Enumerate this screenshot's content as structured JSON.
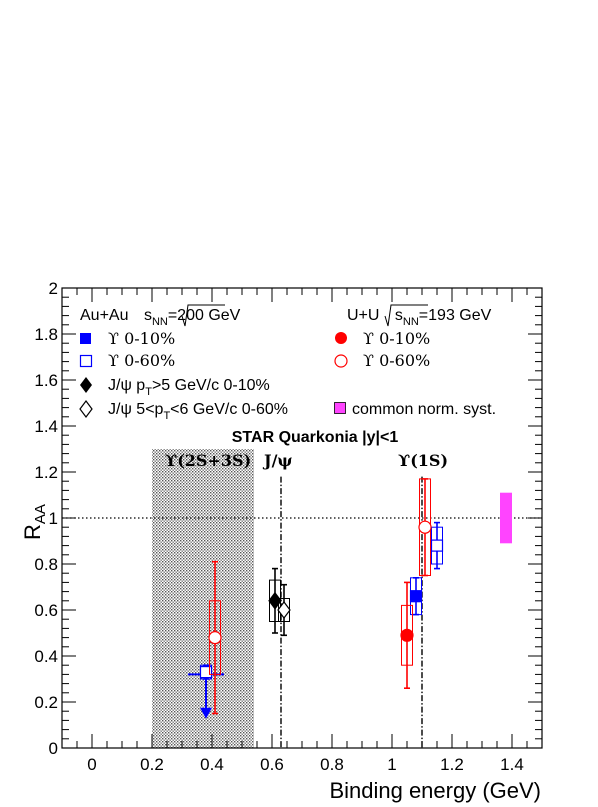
{
  "chart_data": {
    "type": "scatter",
    "title": "STAR Quarkonia |y|<1",
    "xlabel": "Binding energy (GeV)",
    "ylabel": {
      "main": "R",
      "sub": "AA"
    },
    "xlim": [
      -0.1,
      1.5
    ],
    "ylim": [
      0,
      2
    ],
    "x_ticks": [
      "0",
      "0.2",
      "0.4",
      "0.6",
      "0.8",
      "1",
      "1.2",
      "1.4"
    ],
    "y_ticks": [
      "0",
      "0.2",
      "0.4",
      "0.6",
      "0.8",
      "1",
      "1.2",
      "1.4",
      "1.6",
      "1.8",
      "2"
    ],
    "grid": false,
    "reference_line_y": 1,
    "state_lines": [
      {
        "x": 0.63,
        "label": "J/ψ"
      },
      {
        "x": 1.1,
        "label": "ϒ(1S)"
      }
    ],
    "shaded_region": {
      "x": [
        0.2,
        0.54
      ],
      "label": "ϒ(2S+3S)"
    },
    "legend": {
      "auau_header": {
        "main": "Au+Au ",
        "sub": "NN",
        "tail": "=200 GeV"
      },
      "uu_header": {
        "main": "U+U ",
        "sub": "NN",
        "tail": "=193 GeV"
      },
      "entries": [
        {
          "key": "upsilon_auau_010",
          "parts": [
            "ϒ 0-10%"
          ]
        },
        {
          "key": "upsilon_auau_060",
          "parts": [
            "ϒ 0-60%"
          ]
        },
        {
          "key": "jpsi_010",
          "parts": [
            "J/ψ p",
            "T",
            ">5 GeV/c 0-10%"
          ]
        },
        {
          "key": "jpsi_060",
          "parts": [
            "J/ψ 5<p",
            "T",
            "<6 GeV/c 0-60%"
          ]
        },
        {
          "key": "upsilon_uu_010",
          "parts": [
            "ϒ 0-10%"
          ]
        },
        {
          "key": "upsilon_uu_060",
          "parts": [
            "ϒ 0-60%"
          ]
        },
        {
          "key": "norm_syst",
          "parts": [
            "common norm. syst."
          ]
        }
      ]
    },
    "series": [
      {
        "key": "upsilon_auau_010",
        "marker": "square-filled",
        "color": "#0000ff",
        "points": [
          {
            "x": 1.08,
            "y": 0.66,
            "stat": [
              0.08,
              0.08
            ],
            "sys": 0.08
          }
        ],
        "upper_limits": [
          {
            "x": 0.38,
            "y": 0.32,
            "xerr": 0.06,
            "arrow_to": 0.14
          }
        ]
      },
      {
        "key": "upsilon_auau_060",
        "marker": "square-open",
        "color": "#0000ff",
        "points": [
          {
            "x": 0.38,
            "y": 0.33,
            "stat": [
              0.03,
              0.03
            ],
            "sys": 0.03
          },
          {
            "x": 1.15,
            "y": 0.88,
            "stat": [
              0.1,
              0.1
            ],
            "sys": 0.08
          }
        ]
      },
      {
        "key": "jpsi_010",
        "marker": "diamond-filled",
        "color": "#000000",
        "points": [
          {
            "x": 0.61,
            "y": 0.64,
            "stat": [
              0.14,
              0.14
            ],
            "sys": 0.09
          }
        ]
      },
      {
        "key": "jpsi_060",
        "marker": "diamond-open",
        "color": "#000000",
        "points": [
          {
            "x": 0.64,
            "y": 0.6,
            "stat": [
              0.11,
              0.11
            ],
            "sys": 0.05
          }
        ]
      },
      {
        "key": "upsilon_uu_010",
        "marker": "circle-filled",
        "color": "#ff0000",
        "points": [
          {
            "x": 1.05,
            "y": 0.49,
            "stat": [
              0.23,
              0.23
            ],
            "sys": 0.13
          }
        ]
      },
      {
        "key": "upsilon_uu_060",
        "marker": "circle-open",
        "color": "#ff0000",
        "points": [
          {
            "x": 0.41,
            "y": 0.48,
            "stat": [
              0.33,
              0.33
            ],
            "sys": 0.16
          },
          {
            "x": 1.11,
            "y": 0.96,
            "stat": [
              0.21,
              0.21
            ],
            "sys": 0.21
          }
        ]
      },
      {
        "key": "norm_syst",
        "marker": "box",
        "color": "#ff44ff",
        "points": [
          {
            "x": 1.38,
            "y": 1.0,
            "sys": 0.11
          }
        ]
      }
    ]
  }
}
